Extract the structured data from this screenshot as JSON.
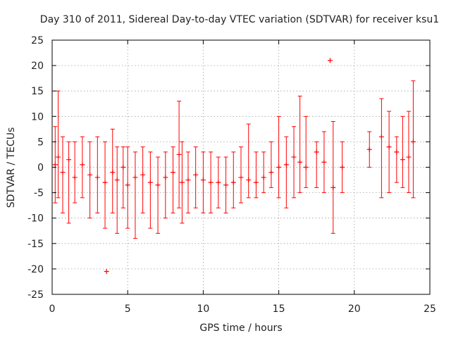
{
  "chart_data": {
    "type": "scatter",
    "title": "Day 310 of 2011, Sidereal Day-to-day VTEC variation (SDTVAR) for receiver ksu1",
    "xlabel": "GPS time / hours",
    "ylabel": "SDTVAR / TECUs",
    "xlim": [
      0,
      25
    ],
    "ylim": [
      -25,
      25
    ],
    "xticks": [
      0,
      5,
      10,
      15,
      20,
      25
    ],
    "yticks": [
      -25,
      -20,
      -15,
      -10,
      -5,
      0,
      5,
      10,
      15,
      20,
      25
    ],
    "grid": true,
    "marker": "+",
    "series_color": "#ff0000",
    "series": [
      {
        "name": "SDTVAR",
        "x": [
          0.2,
          0.4,
          0.7,
          1.1,
          1.5,
          2.0,
          2.5,
          3.0,
          3.5,
          3.6,
          4.0,
          4.3,
          4.7,
          5.0,
          5.5,
          6.0,
          6.5,
          7.0,
          7.5,
          8.0,
          8.4,
          8.6,
          9.0,
          9.5,
          10.0,
          10.5,
          11.0,
          11.5,
          12.0,
          12.5,
          13.0,
          13.5,
          14.0,
          14.5,
          15.0,
          15.5,
          16.0,
          16.4,
          16.8,
          17.5,
          18.0,
          18.4,
          18.6,
          19.2,
          21.0,
          21.8,
          22.3,
          22.8,
          23.2,
          23.6,
          23.9
        ],
        "y": [
          0.5,
          2.0,
          -1.0,
          1.5,
          -2.0,
          0.5,
          -1.5,
          -2.0,
          -3.0,
          -20.5,
          -1.0,
          -2.5,
          0.0,
          -3.5,
          -2.0,
          -1.5,
          -3.0,
          -3.5,
          -2.0,
          -1.0,
          2.5,
          -3.0,
          -2.5,
          -1.5,
          -2.5,
          -3.0,
          -3.0,
          -3.5,
          -3.0,
          -2.0,
          -2.5,
          -3.0,
          -2.0,
          -1.0,
          0.0,
          0.5,
          2.0,
          1.0,
          0.0,
          3.0,
          1.0,
          21.0,
          -4.0,
          0.0,
          3.5,
          6.0,
          4.0,
          3.0,
          1.5,
          2.0,
          5.0
        ],
        "err_low": [
          -7.0,
          -6.0,
          -9.0,
          -11.0,
          -7.0,
          -6.0,
          -10.0,
          -9.0,
          -12.0,
          -20.5,
          -9.0,
          -13.0,
          -8.0,
          -12.0,
          -14.0,
          -9.0,
          -12.0,
          -13.0,
          -10.0,
          -9.0,
          -8.0,
          -11.0,
          -9.0,
          -8.0,
          -9.0,
          -9.0,
          -8.0,
          -9.0,
          -8.0,
          -7.0,
          -6.0,
          -6.0,
          -5.0,
          -4.0,
          -6.0,
          -8.0,
          -6.0,
          -5.0,
          -4.0,
          -4.0,
          -5.0,
          21.0,
          -13.0,
          -5.0,
          0.0,
          -6.0,
          -5.0,
          -3.0,
          -4.0,
          -5.0,
          -6.0
        ],
        "err_high": [
          8.0,
          15.0,
          6.0,
          5.0,
          5.0,
          6.0,
          5.0,
          6.0,
          5.0,
          -20.5,
          7.5,
          4.0,
          4.0,
          4.0,
          3.0,
          4.0,
          3.0,
          2.0,
          3.0,
          4.0,
          13.0,
          5.0,
          3.0,
          4.0,
          3.0,
          3.0,
          2.0,
          2.0,
          3.0,
          4.0,
          8.5,
          3.0,
          3.0,
          5.0,
          10.0,
          6.0,
          8.0,
          14.0,
          10.0,
          5.0,
          7.0,
          21.0,
          9.0,
          5.0,
          7.0,
          13.5,
          11.0,
          6.0,
          10.0,
          11.0,
          17.0
        ]
      }
    ]
  }
}
